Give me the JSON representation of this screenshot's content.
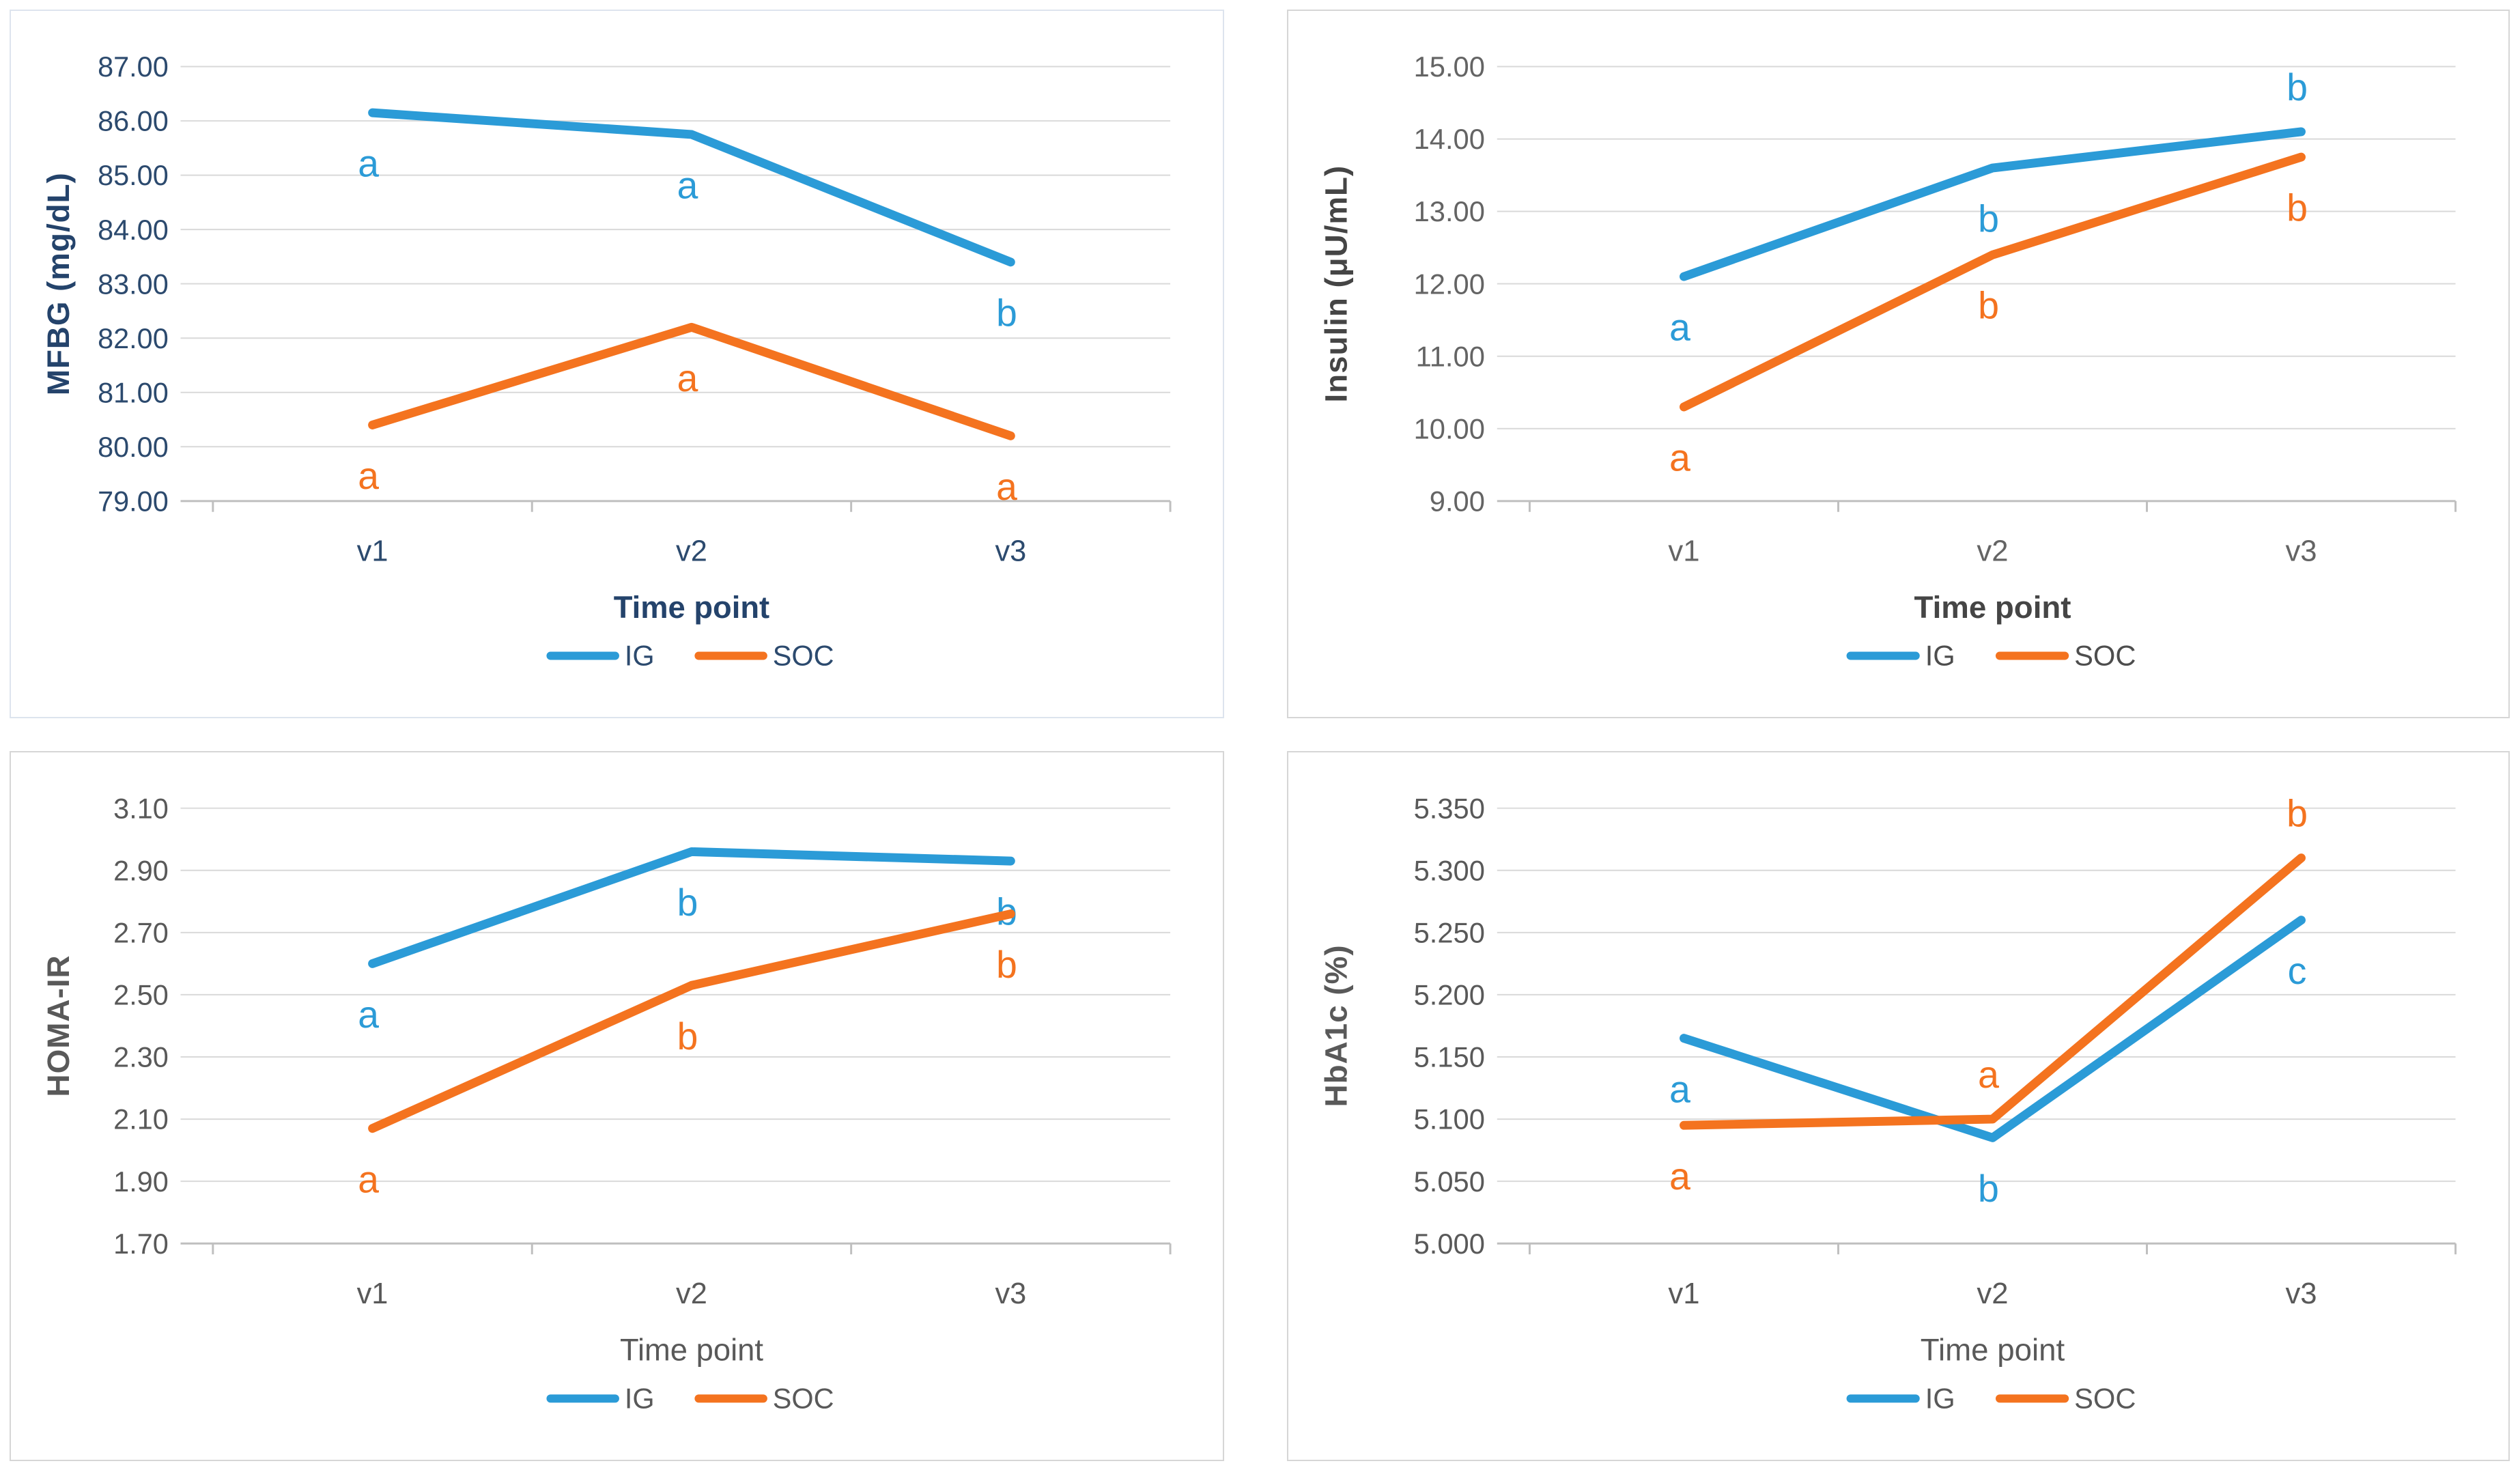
{
  "figure": {
    "description": "2x2 grid of clinical outcome line charts comparing IG vs SOC across three visits",
    "x_axis_label": "Time point",
    "categories": [
      "v1",
      "v2",
      "v3"
    ]
  },
  "legend": {
    "ig": "IG",
    "soc": "SOC"
  },
  "colors": {
    "ig_blue": "#2b9bd7",
    "soc_orange": "#f4731f",
    "gridline": "#d9d9d9",
    "axis_line": "#bfbfbf",
    "navy_text": "#2c4a6e",
    "gray_text": "#595959"
  },
  "chart_data": [
    {
      "type": "line",
      "name": "mfbg",
      "ylabel": "MFBG (mg/dL)",
      "xlabel": "Time point",
      "categories": [
        "v1",
        "v2",
        "v3"
      ],
      "ylim": [
        79,
        87
      ],
      "ytick_labels": [
        "87.00",
        "86.00",
        "85.00",
        "84.00",
        "83.00",
        "82.00",
        "81.00",
        "80.00",
        "79.00"
      ],
      "grid": true,
      "legend_position": "bottom",
      "legend_entries": [
        "IG",
        "SOC"
      ],
      "series": [
        {
          "name": "IG",
          "color": "#2b9bd7",
          "values": [
            86.15,
            85.75,
            83.4
          ],
          "point_labels": [
            "a",
            "a",
            "b"
          ],
          "label_side": [
            "below",
            "below",
            "below"
          ]
        },
        {
          "name": "SOC",
          "color": "#f4731f",
          "values": [
            80.4,
            82.2,
            80.2
          ],
          "point_labels": [
            "a",
            "a",
            "a"
          ],
          "label_side": [
            "below",
            "below",
            "below"
          ]
        }
      ]
    },
    {
      "type": "line",
      "name": "insulin",
      "ylabel": "Insulin (μU/mL)",
      "xlabel": "Time point",
      "categories": [
        "v1",
        "v2",
        "v3"
      ],
      "ylim": [
        9,
        15
      ],
      "ytick_labels": [
        "15.00",
        "14.00",
        "13.00",
        "12.00",
        "11.00",
        "10.00",
        "9.00"
      ],
      "grid": true,
      "legend_position": "bottom",
      "legend_entries": [
        "IG",
        "SOC"
      ],
      "series": [
        {
          "name": "IG",
          "color": "#2b9bd7",
          "values": [
            12.1,
            13.6,
            14.1
          ],
          "point_labels": [
            "a",
            "b",
            "b"
          ],
          "label_side": [
            "below",
            "below",
            "above"
          ]
        },
        {
          "name": "SOC",
          "color": "#f4731f",
          "values": [
            10.3,
            12.4,
            13.75
          ],
          "point_labels": [
            "a",
            "b",
            "b"
          ],
          "label_side": [
            "below",
            "below",
            "below"
          ]
        }
      ]
    },
    {
      "type": "line",
      "name": "homa-ir",
      "ylabel": "HOMA-IR",
      "xlabel": "Time point",
      "categories": [
        "v1",
        "v2",
        "v3"
      ],
      "ylim": [
        1.7,
        3.1
      ],
      "ytick_labels": [
        "3.10",
        "2.90",
        "2.70",
        "2.50",
        "2.30",
        "2.10",
        "1.90",
        "1.70"
      ],
      "grid": true,
      "legend_position": "bottom",
      "legend_entries": [
        "IG",
        "SOC"
      ],
      "series": [
        {
          "name": "IG",
          "color": "#2b9bd7",
          "values": [
            2.6,
            2.96,
            2.93
          ],
          "point_labels": [
            "a",
            "b",
            "b"
          ],
          "label_side": [
            "below",
            "below",
            "below"
          ]
        },
        {
          "name": "SOC",
          "color": "#f4731f",
          "values": [
            2.07,
            2.53,
            2.76
          ],
          "point_labels": [
            "a",
            "b",
            "b"
          ],
          "label_side": [
            "below",
            "below",
            "below"
          ]
        }
      ]
    },
    {
      "type": "line",
      "name": "hba1c",
      "ylabel": "HbA1c (%)",
      "xlabel": "Time point",
      "categories": [
        "v1",
        "v2",
        "v3"
      ],
      "ylim": [
        5.0,
        5.35
      ],
      "ytick_labels": [
        "5.350",
        "5.300",
        "5.250",
        "5.200",
        "5.150",
        "5.100",
        "5.050",
        "5.000"
      ],
      "grid": true,
      "legend_position": "bottom",
      "legend_entries": [
        "IG",
        "SOC"
      ],
      "series": [
        {
          "name": "IG",
          "color": "#2b9bd7",
          "values": [
            5.165,
            5.085,
            5.26
          ],
          "point_labels": [
            "a",
            "b",
            "c"
          ],
          "label_side": [
            "below",
            "below",
            "below"
          ]
        },
        {
          "name": "SOC",
          "color": "#f4731f",
          "values": [
            5.095,
            5.1,
            5.31
          ],
          "point_labels": [
            "a",
            "a",
            "b"
          ],
          "label_side": [
            "below",
            "above",
            "above"
          ]
        }
      ]
    }
  ]
}
